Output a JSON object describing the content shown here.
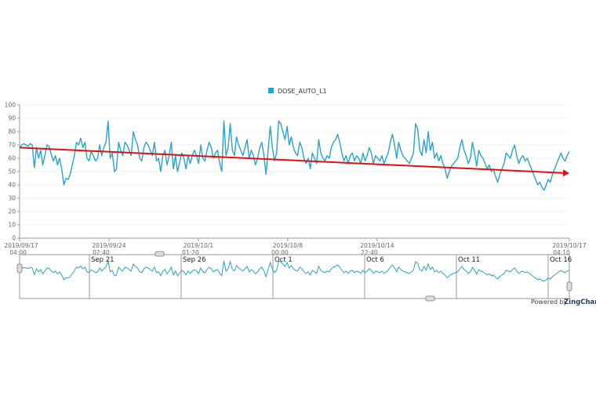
{
  "chart_data": {
    "type": "line",
    "title": "",
    "xlabel": "",
    "ylabel": "",
    "ylim": [
      0,
      100
    ],
    "y_ticks": [
      0,
      10,
      20,
      30,
      40,
      50,
      60,
      70,
      80,
      90,
      100
    ],
    "grid": true,
    "legend_position": "top-center",
    "series": [
      {
        "name": "DOSE_AUTO_L1",
        "color": "#29a2cc",
        "values": [
          68,
          70,
          71,
          70,
          69,
          71,
          70,
          53,
          68,
          60,
          66,
          55,
          62,
          70,
          69,
          63,
          58,
          62,
          55,
          60,
          52,
          40,
          45,
          44,
          48,
          55,
          62,
          72,
          70,
          75,
          68,
          72,
          60,
          58,
          65,
          62,
          58,
          60,
          70,
          62,
          68,
          72,
          88,
          60,
          64,
          50,
          52,
          72,
          66,
          62,
          72,
          70,
          66,
          62,
          80,
          74,
          70,
          60,
          58,
          68,
          72,
          70,
          66,
          62,
          72,
          58,
          60,
          50,
          62,
          66,
          55,
          62,
          72,
          52,
          62,
          50,
          57,
          64,
          60,
          52,
          62,
          56,
          62,
          66,
          62,
          56,
          70,
          60,
          58,
          66,
          72,
          68,
          60,
          64,
          66,
          56,
          50,
          88,
          62,
          68,
          86,
          66,
          62,
          76,
          70,
          66,
          62,
          68,
          74,
          60,
          66,
          62,
          55,
          60,
          68,
          72,
          62,
          48,
          66,
          84,
          68,
          58,
          64,
          88,
          86,
          80,
          74,
          84,
          70,
          76,
          68,
          64,
          62,
          72,
          68,
          60,
          56,
          60,
          52,
          64,
          60,
          56,
          74,
          64,
          60,
          58,
          62,
          60,
          68,
          72,
          74,
          78,
          72,
          64,
          58,
          62,
          56,
          62,
          64,
          58,
          62,
          60,
          56,
          64,
          58,
          62,
          68,
          64,
          56,
          62,
          60,
          58,
          62,
          56,
          60,
          64,
          72,
          78,
          70,
          60,
          72,
          66,
          62,
          60,
          58,
          56,
          60,
          64,
          86,
          82,
          66,
          62,
          74,
          64,
          80,
          66,
          72,
          60,
          64,
          58,
          62,
          56,
          52,
          45,
          50,
          54,
          56,
          58,
          60,
          68,
          74,
          66,
          62,
          56,
          60,
          72,
          64,
          54,
          66,
          62,
          60,
          56,
          52,
          55,
          50,
          52,
          46,
          42,
          48,
          52,
          56,
          64,
          62,
          60,
          66,
          70,
          62,
          56,
          60,
          62,
          58,
          60,
          56,
          52,
          48,
          44,
          40,
          42,
          38,
          36,
          40,
          44,
          42,
          48,
          52,
          56,
          60,
          64,
          60,
          58,
          62,
          65
        ]
      }
    ],
    "x_axis": {
      "tick_labels": [
        {
          "date": "2019/09/17",
          "time": "04:00"
        },
        {
          "date": "2019/09/24",
          "time": "02:40"
        },
        {
          "date": "2019/10/1",
          "time": "01:20"
        },
        {
          "date": "2019/10/8",
          "time": "00:00"
        },
        {
          "date": "2019/10/14",
          "time": "22:40"
        },
        {
          "date": "2019/10/17",
          "time": "04:10"
        }
      ]
    },
    "annotations": [
      {
        "type": "trend-arrow",
        "color": "#e01010",
        "from_value": 68,
        "to_value": 49
      }
    ],
    "navigator": {
      "labels": [
        "Sep 21",
        "Sep 26",
        "Oct 1",
        "Oct 6",
        "Oct 11",
        "Oct 16"
      ]
    }
  },
  "credit": {
    "powered_by": "Powered by",
    "brand": "ZingChart"
  },
  "colors": {
    "line": "#29a2cc",
    "trend": "#e01010",
    "grid": "#e6e6e6",
    "axis": "#999999"
  }
}
